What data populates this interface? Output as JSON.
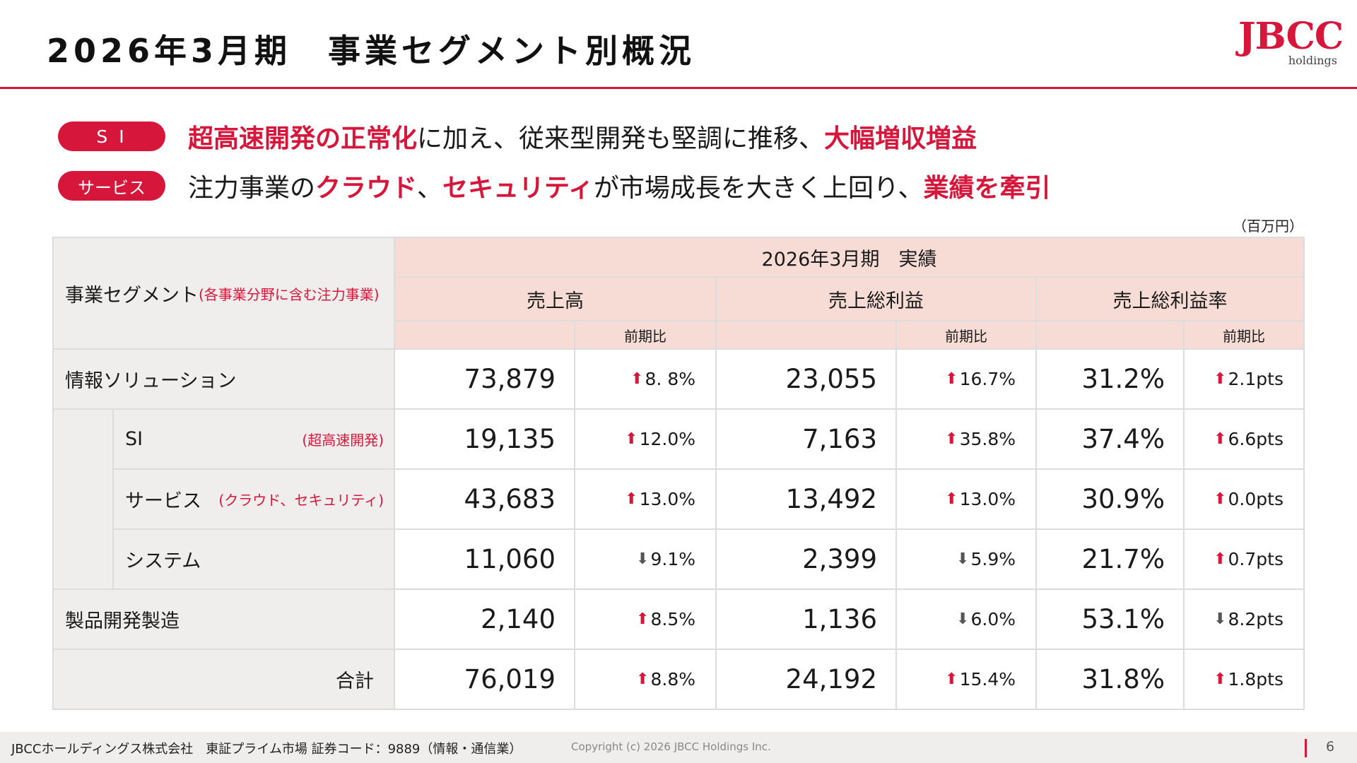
{
  "header": {
    "title": "2026年3月期　事業セグメント別概況",
    "logo_text": "JBCC",
    "logo_sub": "holdings"
  },
  "headlines": [
    {
      "badge": "S I",
      "parts": [
        {
          "text": "超高速開発の正常化",
          "red": true
        },
        {
          "text": "に加え、従来型開発も堅調に推移、",
          "red": false
        },
        {
          "text": "大幅増収増益",
          "red": true
        }
      ]
    },
    {
      "badge": "サービス",
      "parts": [
        {
          "text": "注力事業の",
          "red": false
        },
        {
          "text": "クラウド",
          "red": true
        },
        {
          "text": "、",
          "red": false
        },
        {
          "text": "セキュリティ",
          "red": true
        },
        {
          "text": "が市場成長を大きく上回り、",
          "red": false
        },
        {
          "text": "業績を牽引",
          "red": true
        }
      ]
    }
  ],
  "table": {
    "unit": "（百万円）",
    "segment_header": "事業セグメント",
    "segment_header_sub": "(各事業分野に含む注力事業)",
    "period_header": "2026年3月期　実績",
    "col_revenue": "売上高",
    "col_gross_profit": "売上総利益",
    "col_margin": "売上総利益率",
    "col_yoy": "前期比",
    "rows": [
      {
        "label": "情報ソリューション",
        "sub": "",
        "revenue": "73,879",
        "rev_dir": "up",
        "rev_yoy": "8. 8%",
        "gp": "23,055",
        "gp_dir": "up",
        "gp_yoy": "16.7%",
        "margin": "31.2%",
        "m_dir": "up",
        "m_yoy": "2.1pts"
      },
      {
        "label": "SI",
        "sub": "(超高速開発)",
        "revenue": "19,135",
        "rev_dir": "up",
        "rev_yoy": "12.0%",
        "gp": "7,163",
        "gp_dir": "up",
        "gp_yoy": "35.8%",
        "margin": "37.4%",
        "m_dir": "up",
        "m_yoy": "6.6pts"
      },
      {
        "label": "サービス",
        "sub": "(クラウド、セキュリティ)",
        "revenue": "43,683",
        "rev_dir": "up",
        "rev_yoy": "13.0%",
        "gp": "13,492",
        "gp_dir": "up",
        "gp_yoy": "13.0%",
        "margin": "30.9%",
        "m_dir": "up",
        "m_yoy": "0.0pts"
      },
      {
        "label": "システム",
        "sub": "",
        "revenue": "11,060",
        "rev_dir": "down",
        "rev_yoy": "9.1%",
        "gp": "2,399",
        "gp_dir": "down",
        "gp_yoy": "5.9%",
        "margin": "21.7%",
        "m_dir": "up",
        "m_yoy": "0.7pts"
      },
      {
        "label": "製品開発製造",
        "sub": "",
        "revenue": "2,140",
        "rev_dir": "up",
        "rev_yoy": "8.5%",
        "gp": "1,136",
        "gp_dir": "down",
        "gp_yoy": "6.0%",
        "margin": "53.1%",
        "m_dir": "down",
        "m_yoy": "8.2pts"
      },
      {
        "label": "合計",
        "sub": "",
        "revenue": "76,019",
        "rev_dir": "up",
        "rev_yoy": "8.8%",
        "gp": "24,192",
        "gp_dir": "up",
        "gp_yoy": "15.4%",
        "margin": "31.8%",
        "m_dir": "up",
        "m_yoy": "1.8pts"
      }
    ]
  },
  "footer": {
    "company": "JBCCホールディングス株式会社　東証プライム市場 証券コード：9889（情報・通信業）",
    "copyright": "Copyright (c) 2026 JBCC Holdings Inc.",
    "page": "6"
  },
  "colors": {
    "accent": "#d6163a",
    "header_bg": "#f7dcd6",
    "label_bg": "#f0eeed"
  }
}
